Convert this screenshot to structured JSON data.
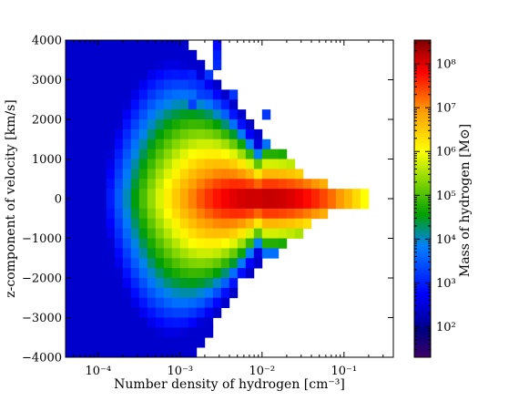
{
  "chart_data": {
    "type": "heatmap",
    "title": "",
    "xlabel": "Number density of hydrogen [cm⁻³]",
    "ylabel": "z-component of velocity [km/s]",
    "x_scale": "log",
    "xlim": [
      4e-05,
      0.4
    ],
    "ylim": [
      -4000,
      4000
    ],
    "x_ticks": [
      0.0001,
      0.001,
      0.01,
      0.1
    ],
    "x_tick_labels": [
      "10⁻⁴",
      "10⁻³",
      "10⁻²",
      "10⁻¹"
    ],
    "y_ticks": [
      -4000,
      -3000,
      -2000,
      -1000,
      0,
      1000,
      2000,
      3000,
      4000
    ],
    "y_tick_labels": [
      "−4000",
      "−3000",
      "−2000",
      "−1000",
      "0",
      "1000",
      "2000",
      "3000",
      "4000"
    ],
    "colorbar": {
      "label": "Mass of hydrogen [M⊙]",
      "scale": "log",
      "range": [
        20,
        350000000
      ],
      "ticks": [
        100,
        1000,
        10000,
        100000,
        1000000,
        10000000,
        100000000
      ],
      "tick_labels": [
        "10²",
        "10³",
        "10⁴",
        "10⁵",
        "10⁶",
        "10⁷",
        "10⁸"
      ],
      "colormap": "jet"
    },
    "cells_note": "grid of log10(mass) values; rows from v=+4000 (top) to v=-4000 (bottom), bins of 250 km/s; columns from log10(n)=-4.4 to -0.6, bins of 0.1 dex; null = empty",
    "grid": {
      "x_log_start": -4.4,
      "x_log_step": 0.1,
      "y_start": 4000,
      "y_step": -250,
      "values": []
    }
  }
}
